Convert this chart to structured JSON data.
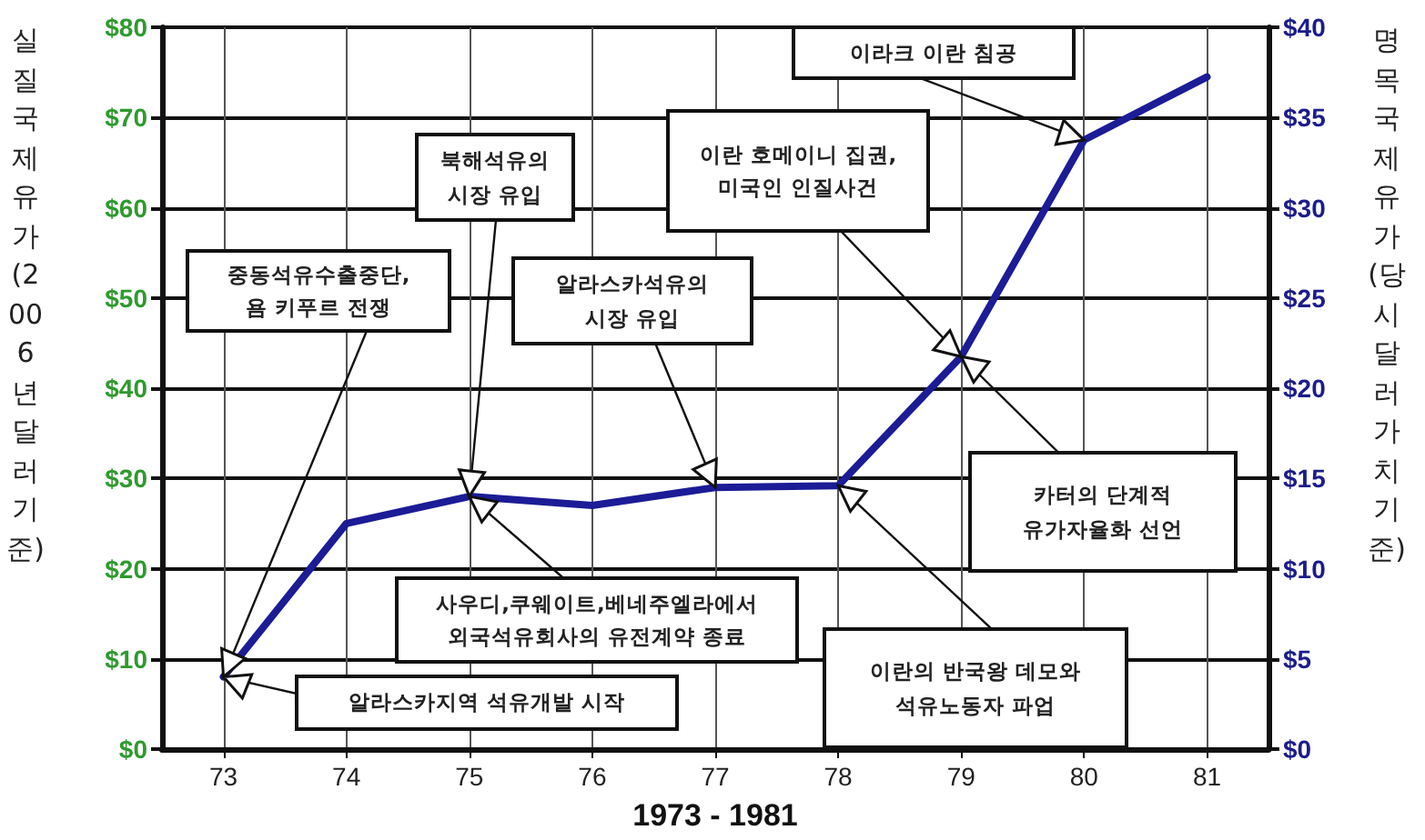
{
  "chart_data": {
    "type": "line",
    "xlabel": "1973 - 1981",
    "ylabel": "실질국제유가(2006년 달러 기준)",
    "y2label": "명목국제유가(당시 달러가치 기준)",
    "x": [
      73,
      74,
      75,
      76,
      77,
      78,
      79,
      80,
      81
    ],
    "series": [
      {
        "color": "#1c1c96",
        "values": [
          8,
          25,
          28,
          27,
          29,
          29.2,
          43.5,
          67.5,
          74.5
        ]
      }
    ],
    "xlim": [
      72.5,
      81.5
    ],
    "xticks": [
      73,
      74,
      75,
      76,
      77,
      78,
      79,
      80,
      81
    ],
    "ylim": [
      0,
      80
    ],
    "yticks": [
      {
        "value": 0,
        "label": "$0"
      },
      {
        "value": 10,
        "label": "$10"
      },
      {
        "value": 20,
        "label": "$20"
      },
      {
        "value": 30,
        "label": "$30"
      },
      {
        "value": 40,
        "label": "$40"
      },
      {
        "value": 50,
        "label": "$50"
      },
      {
        "value": 60,
        "label": "$60"
      },
      {
        "value": 70,
        "label": "$70"
      },
      {
        "value": 80,
        "label": "$80"
      }
    ],
    "y2lim": [
      0,
      40
    ],
    "y2ticks": [
      {
        "value": 0,
        "label": "$0"
      },
      {
        "value": 5,
        "label": "$5"
      },
      {
        "value": 10,
        "label": "$10"
      },
      {
        "value": 15,
        "label": "$15"
      },
      {
        "value": 20,
        "label": "$20"
      },
      {
        "value": 25,
        "label": "$25"
      },
      {
        "value": 30,
        "label": "$30"
      },
      {
        "value": 35,
        "label": "$35"
      },
      {
        "value": 40,
        "label": "$40"
      }
    ],
    "grid": true,
    "marker": "none",
    "line_style": "solid",
    "annotations": [
      {
        "text": "중동석유수출중단,\n욤 키푸르 전쟁",
        "x": 73,
        "y": 8
      },
      {
        "text": "북해석유의\n시장 유입",
        "x": 75,
        "y": 28
      },
      {
        "text": "알라스카석유의\n시장 유입",
        "x": 77,
        "y": 29
      },
      {
        "text": "이란 호메이니 집권,\n미국인 인질사건",
        "x": 79,
        "y": 43.5
      },
      {
        "text": "이라크 이란 침공",
        "x": 80,
        "y": 67.5
      },
      {
        "text": "카터의 단계적\n유가자율화 선언",
        "x": 79,
        "y": 43.5
      },
      {
        "text": "이란의 반국왕 데모와\n석유노동자 파업",
        "x": 78,
        "y": 29.2
      },
      {
        "text": "사우디,쿠웨이트,베네주엘라에서\n외국석유회사의 유전계약 종료",
        "x": 75,
        "y": 28
      },
      {
        "text": "알라스카지역 석유개발 시작",
        "x": 73,
        "y": 8
      }
    ]
  }
}
